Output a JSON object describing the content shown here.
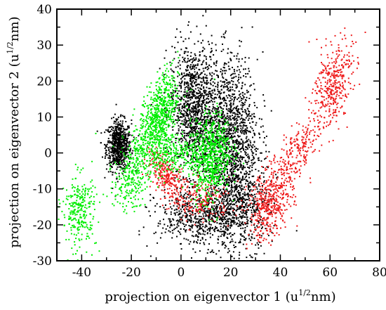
{
  "chart_data": {
    "type": "scatter",
    "title": "",
    "xlabel": {
      "pre": "projection on eigenvector 1 (u",
      "sup": "1/2",
      "post": "nm)"
    },
    "ylabel": {
      "pre": "projection on eigenvector 2 (u",
      "sup": "1/2",
      "post": "nm)"
    },
    "xlim": [
      -50,
      80
    ],
    "ylim": [
      -30,
      40
    ],
    "xticks": [
      -40,
      -20,
      0,
      20,
      40,
      60,
      80
    ],
    "yticks": [
      -30,
      -20,
      -10,
      0,
      10,
      20,
      30,
      40
    ],
    "xtick_labels": [
      "-40",
      "-20",
      "0",
      "20",
      "40",
      "60",
      "80"
    ],
    "ytick_labels": [
      "-30",
      "-20",
      "-10",
      "0",
      "10",
      "20",
      "30",
      "40"
    ],
    "grid": false,
    "legend": "none",
    "series": [
      {
        "color": "#000000",
        "clusters": [
          {
            "cx": -25,
            "cy": 2,
            "sx": 2.5,
            "sy": 3.5,
            "rho": 0.0,
            "n": 700
          },
          {
            "cx": 5,
            "cy": 12,
            "sx": 4.5,
            "sy": 9,
            "rho": 0.0,
            "n": 1100
          },
          {
            "cx": 20,
            "cy": 5,
            "sx": 5.5,
            "sy": 11,
            "rho": 0.0,
            "n": 1300
          },
          {
            "cx": 8,
            "cy": -18,
            "sx": 9,
            "sy": 4,
            "rho": 0.0,
            "n": 600
          },
          {
            "cx": 24,
            "cy": -15,
            "sx": 6,
            "sy": 6,
            "rho": 0.0,
            "n": 500
          }
        ]
      },
      {
        "color": "#ee1c1c",
        "clusters": [
          {
            "cx": -6,
            "cy": -6,
            "sx": 4,
            "sy": 3.5,
            "rho": -0.6,
            "n": 260
          },
          {
            "cx": 8,
            "cy": -13,
            "sx": 6,
            "sy": 3,
            "rho": 0.0,
            "n": 200
          },
          {
            "cx": 36,
            "cy": -14,
            "sx": 4.5,
            "sy": 5,
            "rho": 0.3,
            "n": 450
          },
          {
            "cx": 47,
            "cy": 0,
            "sx": 5,
            "sy": 5,
            "rho": 0.7,
            "n": 220
          },
          {
            "cx": 61,
            "cy": 19,
            "sx": 4,
            "sy": 6,
            "rho": 0.4,
            "n": 380
          }
        ]
      },
      {
        "color": "#00ee00",
        "clusters": [
          {
            "cx": -41,
            "cy": -16,
            "sx": 3.5,
            "sy": 5,
            "rho": 0.0,
            "n": 280
          },
          {
            "cx": -20,
            "cy": -6,
            "sx": 3.5,
            "sy": 5,
            "rho": 0.3,
            "n": 280
          },
          {
            "cx": -9,
            "cy": 10,
            "sx": 4,
            "sy": 6,
            "rho": 0.5,
            "n": 700
          },
          {
            "cx": -3,
            "cy": 0,
            "sx": 6,
            "sy": 3,
            "rho": 0.2,
            "n": 300
          },
          {
            "cx": 12,
            "cy": -1,
            "sx": 4,
            "sy": 6,
            "rho": 0.2,
            "n": 700
          }
        ]
      }
    ]
  }
}
